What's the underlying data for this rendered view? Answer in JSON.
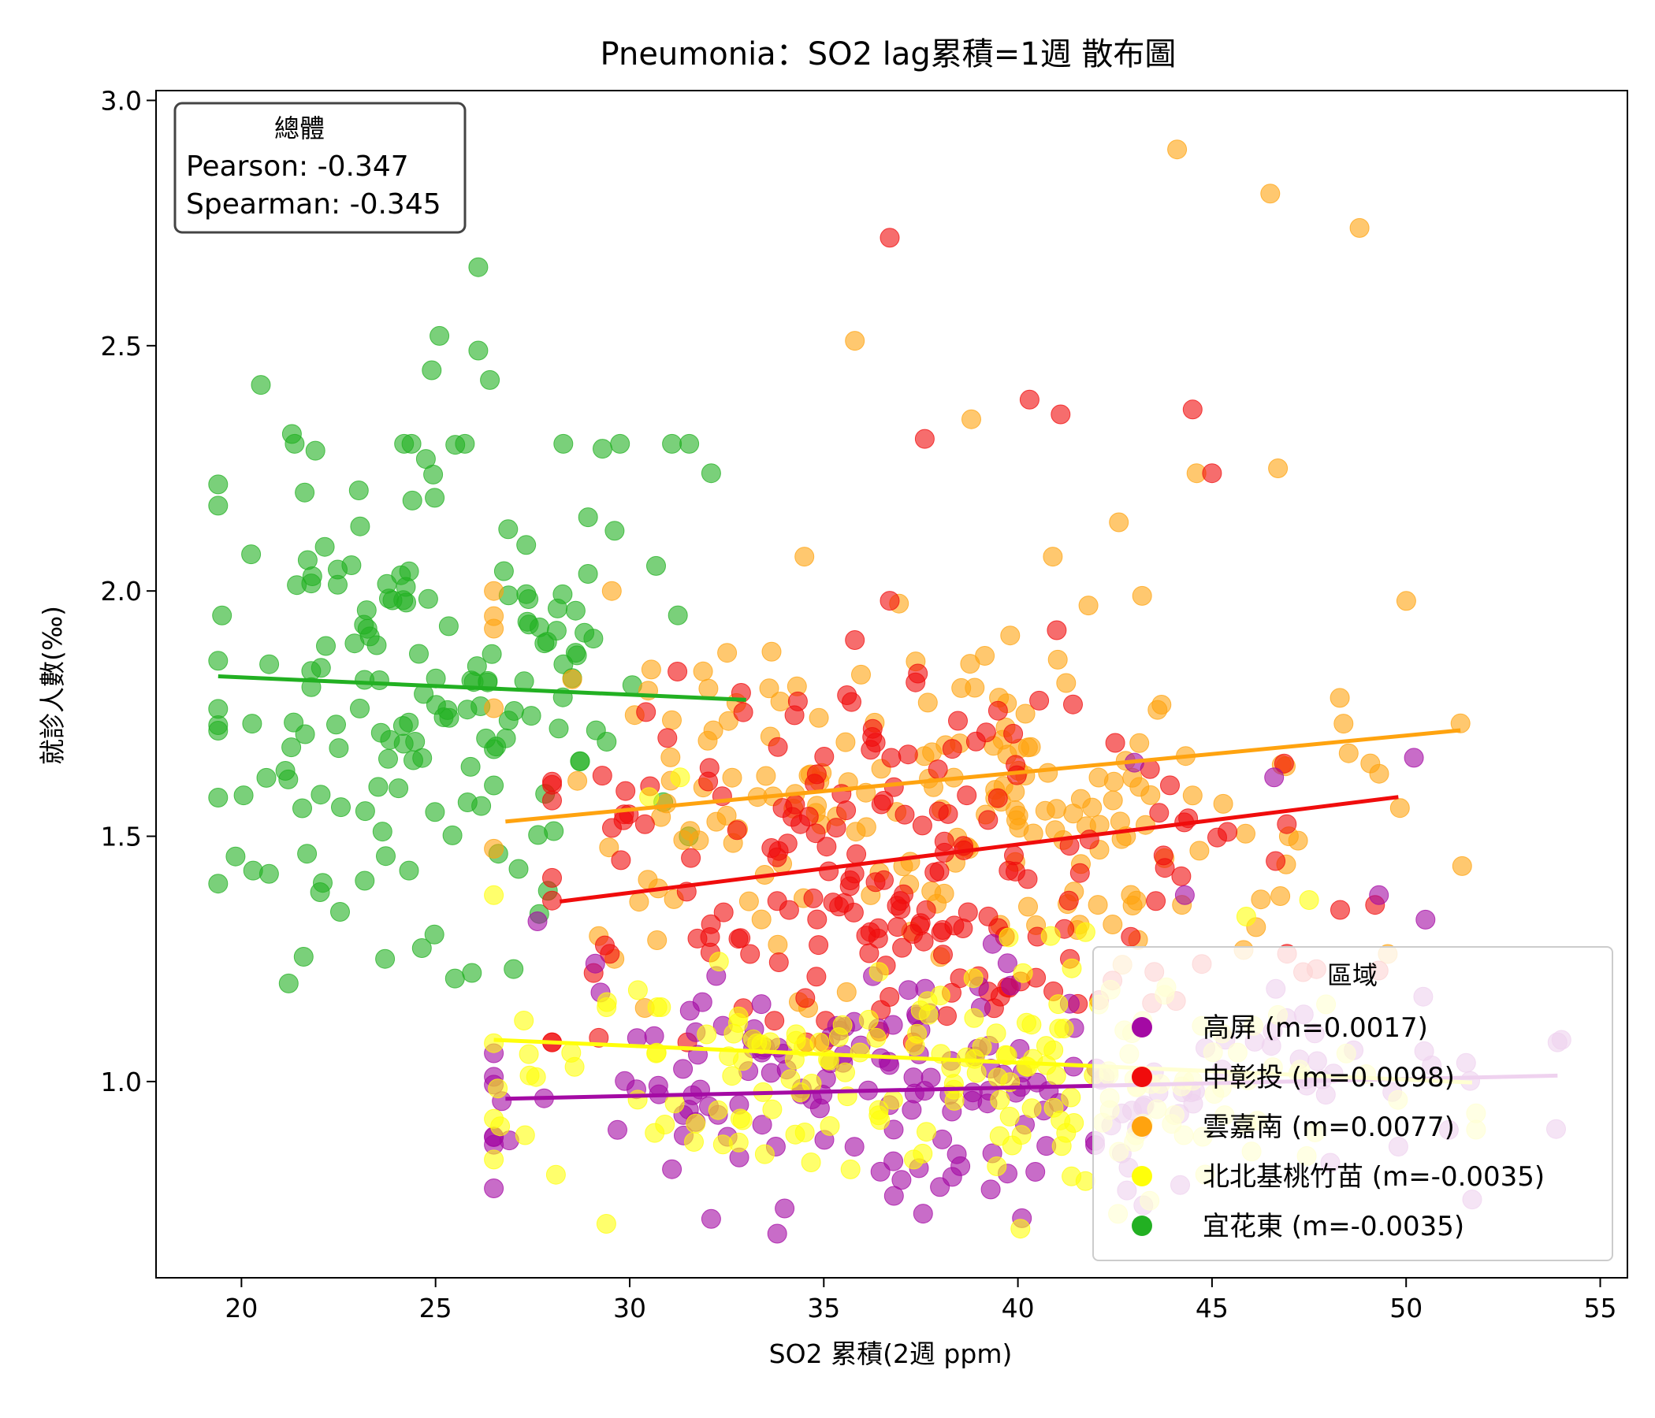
{
  "chart_data": {
    "type": "scatter",
    "title": "Pneumonia：SO2 lag累積=1週 散布圖",
    "xlabel": "SO2 累積(2週 ppm)",
    "ylabel": "就診人數(‰)",
    "xlim": [
      17.8,
      55.7
    ],
    "ylim": [
      0.6,
      3.02
    ],
    "xticks": [
      "20",
      "25",
      "30",
      "35",
      "40",
      "45",
      "50",
      "55"
    ],
    "yticks": [
      "1.0",
      "1.5",
      "2.0",
      "2.5",
      "3.0"
    ],
    "grid": false,
    "stats_box": {
      "title": "總體",
      "lines": [
        "Pearson: -0.347",
        "Spearman: -0.345"
      ],
      "placement": "top-left"
    },
    "legend": {
      "title": "區域",
      "placement": "lower-right"
    },
    "series": [
      {
        "name": "高屏 (m=0.0017)",
        "color": "#a40aa4",
        "trend": {
          "x": [
            26.8,
            53.9
          ],
          "y": [
            0.965,
            1.012
          ]
        },
        "cloud": {
          "x_mean": 38.5,
          "x_sd": 6.5,
          "x_min": 26.5,
          "x_max": 54.0,
          "y_mean": 0.99,
          "y_sd": 0.11,
          "y_min": 0.69,
          "y_max": 1.33,
          "n": 190
        },
        "points": [
          [
            50.2,
            1.66
          ],
          [
            46.6,
            1.62
          ],
          [
            49.3,
            1.38
          ],
          [
            50.5,
            1.33
          ],
          [
            43.0,
            1.65
          ],
          [
            44.3,
            1.38
          ],
          [
            53.9,
            1.08
          ],
          [
            33.8,
            0.69
          ],
          [
            32.1,
            0.72
          ],
          [
            39.3,
            0.78
          ],
          [
            26.9,
            0.88
          ]
        ]
      },
      {
        "name": "中彰投 (m=0.0098)",
        "color": "#f00c0c",
        "trend": {
          "x": [
            28.2,
            49.8
          ],
          "y": [
            1.367,
            1.58
          ]
        },
        "cloud": {
          "x_mean": 37.0,
          "x_sd": 4.6,
          "x_min": 28.0,
          "x_max": 49.5,
          "y_mean": 1.43,
          "y_sd": 0.2,
          "y_min": 1.08,
          "y_max": 1.9,
          "n": 200
        },
        "points": [
          [
            36.7,
            2.72
          ],
          [
            40.3,
            2.39
          ],
          [
            41.1,
            2.36
          ],
          [
            37.6,
            2.31
          ],
          [
            44.5,
            2.37
          ],
          [
            45.0,
            2.24
          ],
          [
            36.7,
            1.98
          ],
          [
            41.0,
            1.92
          ],
          [
            35.8,
            1.9
          ],
          [
            49.2,
            1.36
          ],
          [
            48.3,
            1.35
          ],
          [
            33.1,
            1.26
          ]
        ]
      },
      {
        "name": "雲嘉南 (m=0.0077)",
        "color": "#ffa30f",
        "trend": {
          "x": [
            26.8,
            51.4
          ],
          "y": [
            1.53,
            1.716
          ]
        },
        "cloud": {
          "x_mean": 38.5,
          "x_sd": 5.3,
          "x_min": 26.5,
          "x_max": 51.5,
          "y_mean": 1.56,
          "y_sd": 0.2,
          "y_min": 1.15,
          "y_max": 2.0,
          "n": 200
        },
        "points": [
          [
            44.1,
            2.9
          ],
          [
            46.5,
            2.81
          ],
          [
            48.8,
            2.74
          ],
          [
            35.8,
            2.51
          ],
          [
            38.8,
            2.35
          ],
          [
            44.6,
            2.24
          ],
          [
            46.7,
            2.25
          ],
          [
            42.6,
            2.14
          ],
          [
            34.5,
            2.07
          ],
          [
            40.9,
            2.07
          ],
          [
            43.2,
            1.99
          ],
          [
            51.4,
            1.73
          ]
        ]
      },
      {
        "name": "北北基桃竹苗 (m=-0.0035)",
        "color": "#ffff0a",
        "trend": {
          "x": [
            26.5,
            51.7
          ],
          "y": [
            1.085,
            0.998
          ]
        },
        "cloud": {
          "x_mean": 38.0,
          "x_sd": 6.0,
          "x_min": 26.5,
          "x_max": 51.8,
          "y_mean": 1.0,
          "y_sd": 0.12,
          "y_min": 0.7,
          "y_max": 1.38,
          "n": 190
        },
        "points": [
          [
            29.4,
            0.71
          ],
          [
            26.5,
            1.38
          ],
          [
            28.1,
            0.81
          ],
          [
            31.3,
            1.62
          ],
          [
            47.5,
            1.37
          ],
          [
            30.5,
            1.58
          ]
        ]
      },
      {
        "name": "宜花東 (m=-0.0035)",
        "color": "#22b022",
        "trend": {
          "x": [
            19.4,
            33.0
          ],
          "y": [
            1.826,
            1.778
          ]
        },
        "cloud": {
          "x_mean": 25.3,
          "x_sd": 3.3,
          "x_min": 19.4,
          "x_max": 32.5,
          "y_mean": 1.8,
          "y_sd": 0.26,
          "y_min": 1.2,
          "y_max": 2.3,
          "n": 170
        },
        "points": [
          [
            26.1,
            2.66
          ],
          [
            25.1,
            2.52
          ],
          [
            26.1,
            2.49
          ],
          [
            20.5,
            2.42
          ],
          [
            26.4,
            2.43
          ],
          [
            21.3,
            2.32
          ],
          [
            29.3,
            2.29
          ],
          [
            32.1,
            2.24
          ],
          [
            24.9,
            2.45
          ],
          [
            19.5,
            1.95
          ],
          [
            20.3,
            1.43
          ],
          [
            25.5,
            1.21
          ],
          [
            23.7,
            1.25
          ]
        ]
      }
    ]
  }
}
